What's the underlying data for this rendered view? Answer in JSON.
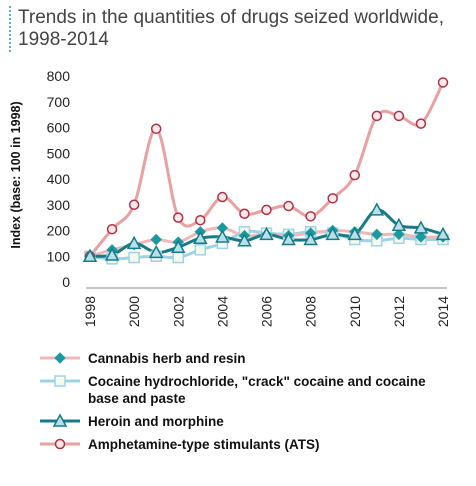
{
  "title_lines": [
    "Trends in the quantities of drugs seized worldwide,",
    "1998-2014"
  ],
  "chart_data": {
    "type": "line",
    "ylabel": "Index (base: 100 in 1998)",
    "xlabel": "",
    "ylim": [
      0,
      800
    ],
    "yticks": [
      0,
      100,
      200,
      300,
      400,
      500,
      600,
      700,
      800
    ],
    "xlim": [
      1998,
      2014
    ],
    "xticks": [
      1998,
      2000,
      2002,
      2004,
      2006,
      2008,
      2010,
      2012,
      2014
    ],
    "x": [
      1998,
      1999,
      2000,
      2001,
      2002,
      2003,
      2004,
      2005,
      2006,
      2007,
      2008,
      2009,
      2010,
      2011,
      2012,
      2013,
      2014
    ],
    "grid": false,
    "legend": "bottom",
    "series": [
      {
        "name": "Cannabis herb and resin",
        "color": "#1a9aa0",
        "line_color": "#f0b8b8",
        "marker": "diamond",
        "values": [
          100,
          125,
          145,
          165,
          155,
          195,
          210,
          180,
          185,
          180,
          190,
          200,
          195,
          185,
          185,
          175,
          175
        ]
      },
      {
        "name": "Cocaine hydrochloride, \"crack\" cocaine and cocaine base and paste",
        "color": "#9ed3e6",
        "line_color": "#9ed3e6",
        "marker": "square",
        "values": [
          100,
          90,
          95,
          100,
          95,
          125,
          150,
          195,
          190,
          185,
          195,
          190,
          165,
          160,
          170,
          165,
          165
        ]
      },
      {
        "name": "Heroin and morphine",
        "color": "#167a87",
        "line_color": "#167a87",
        "marker": "triangle",
        "values": [
          100,
          105,
          150,
          115,
          135,
          170,
          175,
          160,
          185,
          165,
          165,
          185,
          185,
          280,
          220,
          210,
          185
        ]
      },
      {
        "name": "Amphetamine-type stimulants (ATS)",
        "color": "#e8a0a0",
        "line_color": "#e8a0a0",
        "marker": "circle",
        "marker_stroke": "#b03040",
        "values": [
          100,
          205,
          300,
          595,
          250,
          240,
          330,
          265,
          280,
          295,
          255,
          325,
          415,
          645,
          645,
          615,
          775
        ]
      }
    ]
  }
}
